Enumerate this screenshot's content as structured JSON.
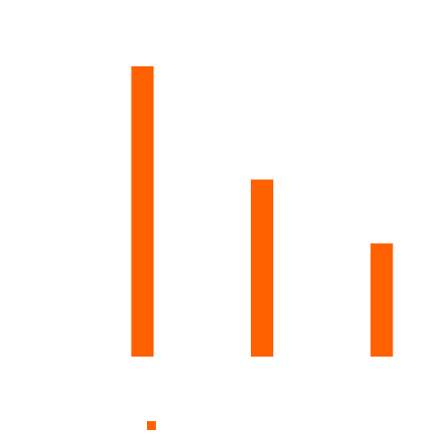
{
  "chart_data": {
    "type": "bar",
    "categories": [
      "",
      "",
      ""
    ],
    "series": [
      {
        "name": "",
        "color": "#ff6000",
        "values": [
          100,
          61,
          39
        ]
      }
    ],
    "ylim": [
      0,
      100
    ],
    "title": "",
    "xlabel": "",
    "ylabel": "",
    "grid": false,
    "legend": {
      "position": "bottom",
      "entries": [
        {
          "label": "",
          "color": "#ff6000"
        }
      ]
    }
  }
}
